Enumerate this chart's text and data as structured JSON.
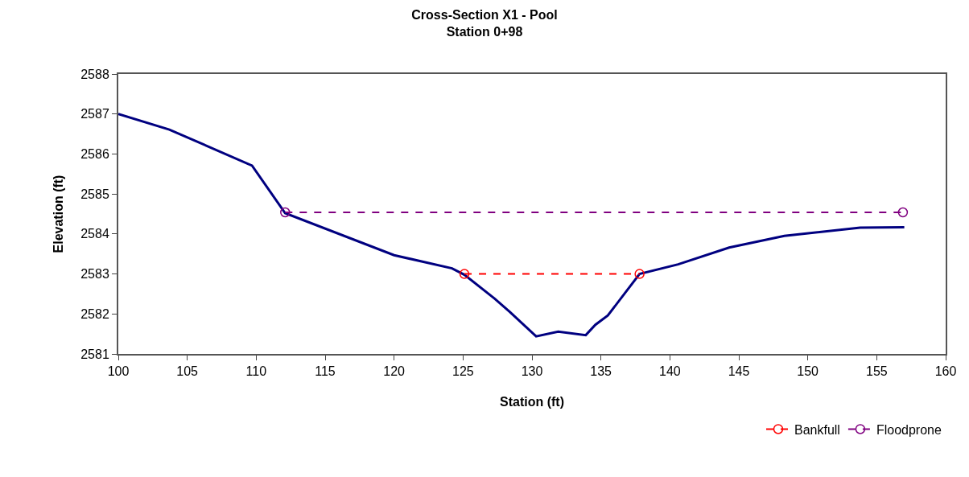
{
  "chart_data": {
    "type": "line",
    "title": "Cross-Section X1 - Pool",
    "subtitle": "Station 0+98",
    "xlabel": "Station (ft)",
    "ylabel": "Elevation (ft)",
    "xlim": [
      100,
      160
    ],
    "xticks": [
      100,
      105,
      110,
      115,
      120,
      125,
      130,
      135,
      140,
      145,
      150,
      155,
      160
    ],
    "ylim": [
      2581,
      2588
    ],
    "yticks": [
      2581,
      2582,
      2583,
      2584,
      2585,
      2586,
      2587,
      2588
    ],
    "legend": "bottom right",
    "series": [
      {
        "color": "#000080",
        "marker": "none",
        "line_style": "solid",
        "x": [
          100,
          103.7,
          109.7,
          112.1,
          120.0,
          124.2,
          125.1,
          127.3,
          128.4,
          130.3,
          131.9,
          133.9,
          134.6,
          135.5,
          137.8,
          140.6,
          144.3,
          148.3,
          153.8,
          157.0
        ],
        "values": [
          2587.0,
          2586.61,
          2585.71,
          2584.52,
          2583.47,
          2583.14,
          2582.98,
          2582.38,
          2582.05,
          2581.44,
          2581.56,
          2581.47,
          2581.73,
          2581.96,
          2583.0,
          2583.24,
          2583.66,
          2583.95,
          2584.16,
          2584.17
        ]
      },
      {
        "name": "Bankfull",
        "color": "#ff0000",
        "marker": "circle",
        "line_style": "dashed",
        "x": [
          125.1,
          137.8
        ],
        "values": [
          2583.0,
          2583.0
        ]
      },
      {
        "name": "Floodprone",
        "color": "#800080",
        "marker": "circle",
        "line_style": "dashed",
        "x": [
          112.1,
          156.9
        ],
        "values": [
          2584.54,
          2584.54
        ]
      }
    ]
  }
}
